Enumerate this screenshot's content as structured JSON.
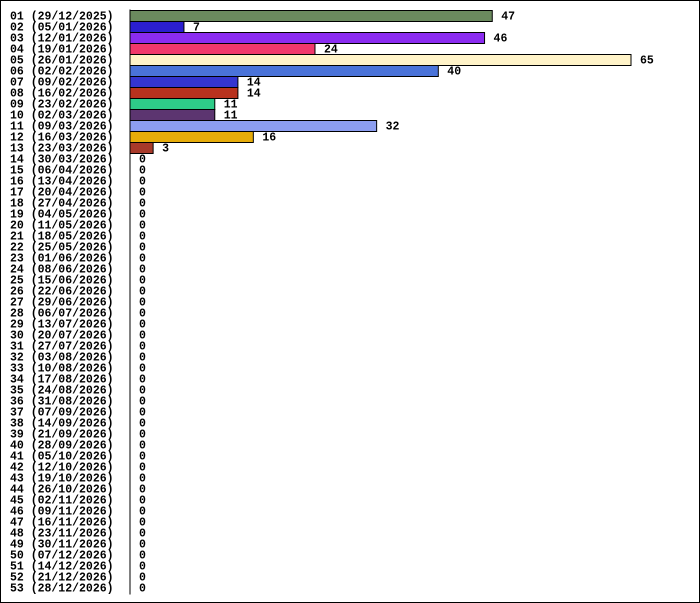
{
  "chart_data": {
    "type": "hbar",
    "categories": [
      "01 (29/12/2025)",
      "02 (05/01/2026)",
      "03 (12/01/2026)",
      "04 (19/01/2026)",
      "05 (26/01/2026)",
      "06 (02/02/2026)",
      "07 (09/02/2026)",
      "08 (16/02/2026)",
      "09 (23/02/2026)",
      "10 (02/03/2026)",
      "11 (09/03/2026)",
      "12 (16/03/2026)",
      "13 (23/03/2026)",
      "14 (30/03/2026)",
      "15 (06/04/2026)",
      "16 (13/04/2026)",
      "17 (20/04/2026)",
      "18 (27/04/2026)",
      "19 (04/05/2026)",
      "20 (11/05/2026)",
      "21 (18/05/2026)",
      "22 (25/05/2026)",
      "23 (01/06/2026)",
      "24 (08/06/2026)",
      "25 (15/06/2026)",
      "26 (22/06/2026)",
      "27 (29/06/2026)",
      "28 (06/07/2026)",
      "29 (13/07/2026)",
      "30 (20/07/2026)",
      "31 (27/07/2026)",
      "32 (03/08/2026)",
      "33 (10/08/2026)",
      "34 (17/08/2026)",
      "35 (24/08/2026)",
      "36 (31/08/2026)",
      "37 (07/09/2026)",
      "38 (14/09/2026)",
      "39 (21/09/2026)",
      "40 (28/09/2026)",
      "41 (05/10/2026)",
      "42 (12/10/2026)",
      "43 (19/10/2026)",
      "44 (26/10/2026)",
      "45 (02/11/2026)",
      "46 (09/11/2026)",
      "47 (16/11/2026)",
      "48 (23/11/2026)",
      "49 (30/11/2026)",
      "50 (07/12/2026)",
      "51 (14/12/2026)",
      "52 (21/12/2026)",
      "53 (28/12/2026)"
    ],
    "values": [
      47,
      7,
      46,
      24,
      65,
      40,
      14,
      14,
      11,
      11,
      32,
      16,
      3,
      0,
      0,
      0,
      0,
      0,
      0,
      0,
      0,
      0,
      0,
      0,
      0,
      0,
      0,
      0,
      0,
      0,
      0,
      0,
      0,
      0,
      0,
      0,
      0,
      0,
      0,
      0,
      0,
      0,
      0,
      0,
      0,
      0,
      0,
      0,
      0,
      0,
      0,
      0,
      0
    ],
    "colors": [
      "#6b8a5e",
      "#2b1fcf",
      "#8b2cf0",
      "#f0386b",
      "#fff3c8",
      "#4a73d9",
      "#3535d0",
      "#b8321e",
      "#2ecc88",
      "#5c3570",
      "#8c9ef0",
      "#e6ac0a",
      "#a83a2a",
      "#808080",
      "#808080",
      "#808080",
      "#808080",
      "#808080",
      "#808080",
      "#808080",
      "#808080",
      "#808080",
      "#808080",
      "#808080",
      "#808080",
      "#808080",
      "#808080",
      "#808080",
      "#808080",
      "#808080",
      "#808080",
      "#808080",
      "#808080",
      "#808080",
      "#808080",
      "#808080",
      "#808080",
      "#808080",
      "#808080",
      "#808080",
      "#808080",
      "#808080",
      "#808080",
      "#808080",
      "#808080",
      "#808080",
      "#808080",
      "#808080",
      "#808080",
      "#808080",
      "#808080",
      "#808080",
      "#808080"
    ],
    "xlim": [
      0,
      65
    ]
  }
}
